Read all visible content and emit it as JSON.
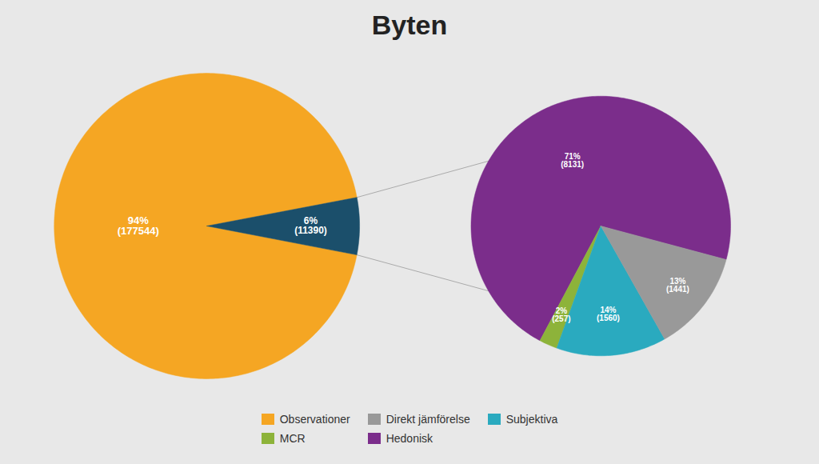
{
  "chart_data": {
    "type": "pie",
    "title": "Byten",
    "legend": "bottom",
    "background_color": "#e8e8e8",
    "label_color": "#ffffff",
    "connector_color": "#aaaaaa",
    "pies": [
      {
        "values": [
          177544,
          11390
        ],
        "value_labels": [
          "94%\n(177544)",
          "6%\n(11390)"
        ],
        "colors": [
          "#f5a623",
          "#1b4f6b"
        ]
      },
      {
        "values": [
          8131,
          257,
          1560,
          1441
        ],
        "value_labels": [
          "71%\n(8131)",
          "2%\n(257)",
          "14%\n(1560)",
          "13%\n(1441)"
        ],
        "colors": [
          "#7b2d8b",
          "#8db33a",
          "#2aaabf",
          "#999999"
        ]
      }
    ],
    "series": [
      {
        "name": "Observationer",
        "color": "#f5a623"
      },
      {
        "name": "Direkt jämförelse",
        "color": "#999999"
      },
      {
        "name": "Subjektiva",
        "color": "#2aaabf"
      },
      {
        "name": "MCR",
        "color": "#8db33a"
      },
      {
        "name": "Hedonisk",
        "color": "#7b2d8b"
      }
    ]
  }
}
